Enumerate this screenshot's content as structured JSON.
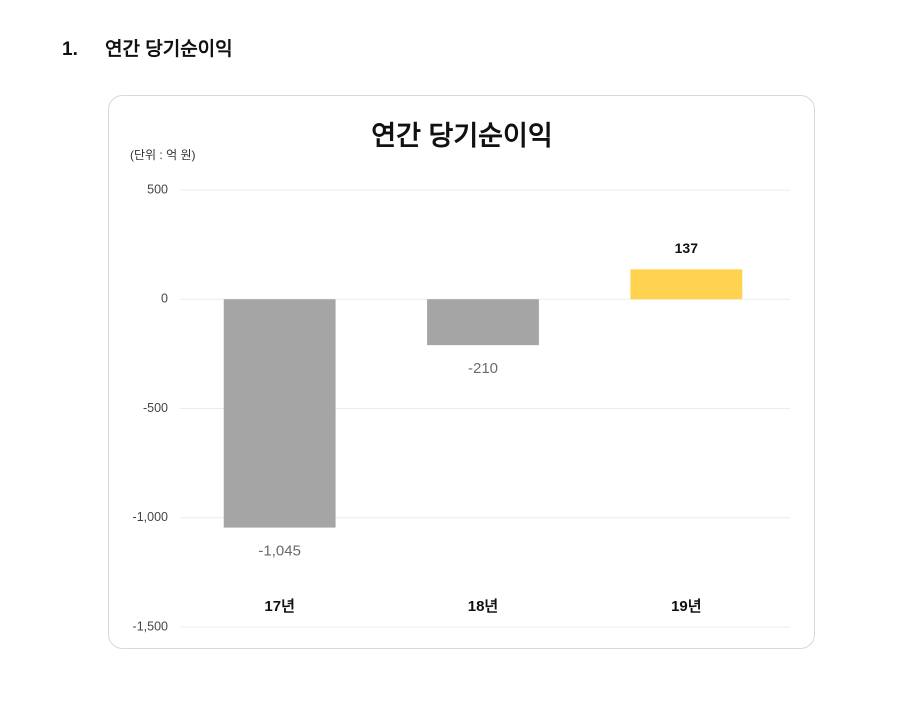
{
  "heading": {
    "number": "1.",
    "text": "연간 당기순이익"
  },
  "chart_data": {
    "type": "bar",
    "title": "연간 당기순이익",
    "unit": "(단위 : 억 원)",
    "categories": [
      "17년",
      "18년",
      "19년"
    ],
    "values": [
      -1045,
      -210,
      137
    ],
    "value_labels": [
      "-1,045",
      "-210",
      "137"
    ],
    "colors": [
      "#a5a5a5",
      "#a5a5a5",
      "#ffd34f"
    ],
    "ylim": [
      -1500,
      500
    ],
    "yticks": [
      500,
      0,
      -500,
      {
        "value": -1000,
        "label": "-1,000"
      },
      {
        "value": -1500,
        "label": "-1,500"
      }
    ],
    "grid": true
  }
}
